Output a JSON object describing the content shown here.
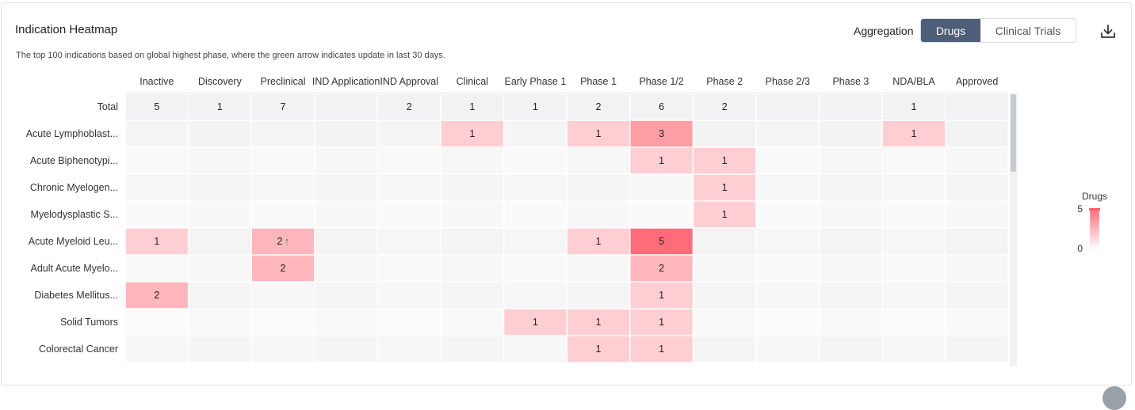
{
  "header": {
    "title": "Indication Heatmap",
    "subtitle": "The top 100 indications based on global highest phase, where the green arrow indicates update in last 30 days.",
    "aggregation_label": "Aggregation",
    "options": [
      "Drugs",
      "Clinical Trials"
    ],
    "selected": "Drugs",
    "download_icon": "download-icon"
  },
  "chart_data": {
    "type": "heatmap",
    "title": "Indication Heatmap",
    "columns": [
      "Inactive",
      "Discovery",
      "Preclinical",
      "IND Application",
      "IND Approval",
      "Clinical",
      "Early Phase 1",
      "Phase 1",
      "Phase 1/2",
      "Phase 2",
      "Phase 2/3",
      "Phase 3",
      "NDA/BLA",
      "Approved"
    ],
    "total": {
      "label": "Total",
      "values": [
        5,
        1,
        7,
        null,
        2,
        1,
        1,
        2,
        6,
        2,
        null,
        null,
        1,
        null
      ]
    },
    "rows": [
      {
        "label": "Acute Lymphoblast...",
        "values": [
          null,
          null,
          null,
          null,
          null,
          1,
          null,
          1,
          3,
          null,
          null,
          null,
          1,
          null
        ]
      },
      {
        "label": "Acute Biphenotypi...",
        "values": [
          null,
          null,
          null,
          null,
          null,
          null,
          null,
          null,
          1,
          1,
          null,
          null,
          null,
          null
        ]
      },
      {
        "label": "Chronic Myelogen...",
        "values": [
          null,
          null,
          null,
          null,
          null,
          null,
          null,
          null,
          null,
          1,
          null,
          null,
          null,
          null
        ]
      },
      {
        "label": "Myelodysplastic S...",
        "values": [
          null,
          null,
          null,
          null,
          null,
          null,
          null,
          null,
          null,
          1,
          null,
          null,
          null,
          null
        ]
      },
      {
        "label": "Acute Myeloid Leu...",
        "values": [
          1,
          null,
          2,
          null,
          null,
          null,
          null,
          1,
          5,
          null,
          null,
          null,
          null,
          null
        ]
      },
      {
        "label": "Adult Acute Myelo...",
        "values": [
          null,
          null,
          2,
          null,
          null,
          null,
          null,
          null,
          2,
          null,
          null,
          null,
          null,
          null
        ]
      },
      {
        "label": "Diabetes Mellitus...",
        "values": [
          2,
          null,
          null,
          null,
          null,
          null,
          null,
          null,
          1,
          null,
          null,
          null,
          null,
          null
        ]
      },
      {
        "label": "Solid Tumors",
        "values": [
          null,
          null,
          null,
          null,
          null,
          null,
          1,
          1,
          1,
          null,
          null,
          null,
          null,
          null
        ]
      },
      {
        "label": "Colorectal Cancer",
        "values": [
          null,
          null,
          null,
          null,
          null,
          null,
          null,
          1,
          1,
          null,
          null,
          null,
          null,
          null
        ]
      }
    ],
    "updated_cells": [
      {
        "row": "Acute Myeloid Leu...",
        "column": "Preclinical",
        "indicator": "↑"
      }
    ],
    "legend": {
      "title": "Drugs",
      "min": 0,
      "max": 5,
      "placement": "right",
      "color_low": "#ffffff",
      "color_high": "#ff6b78"
    }
  }
}
